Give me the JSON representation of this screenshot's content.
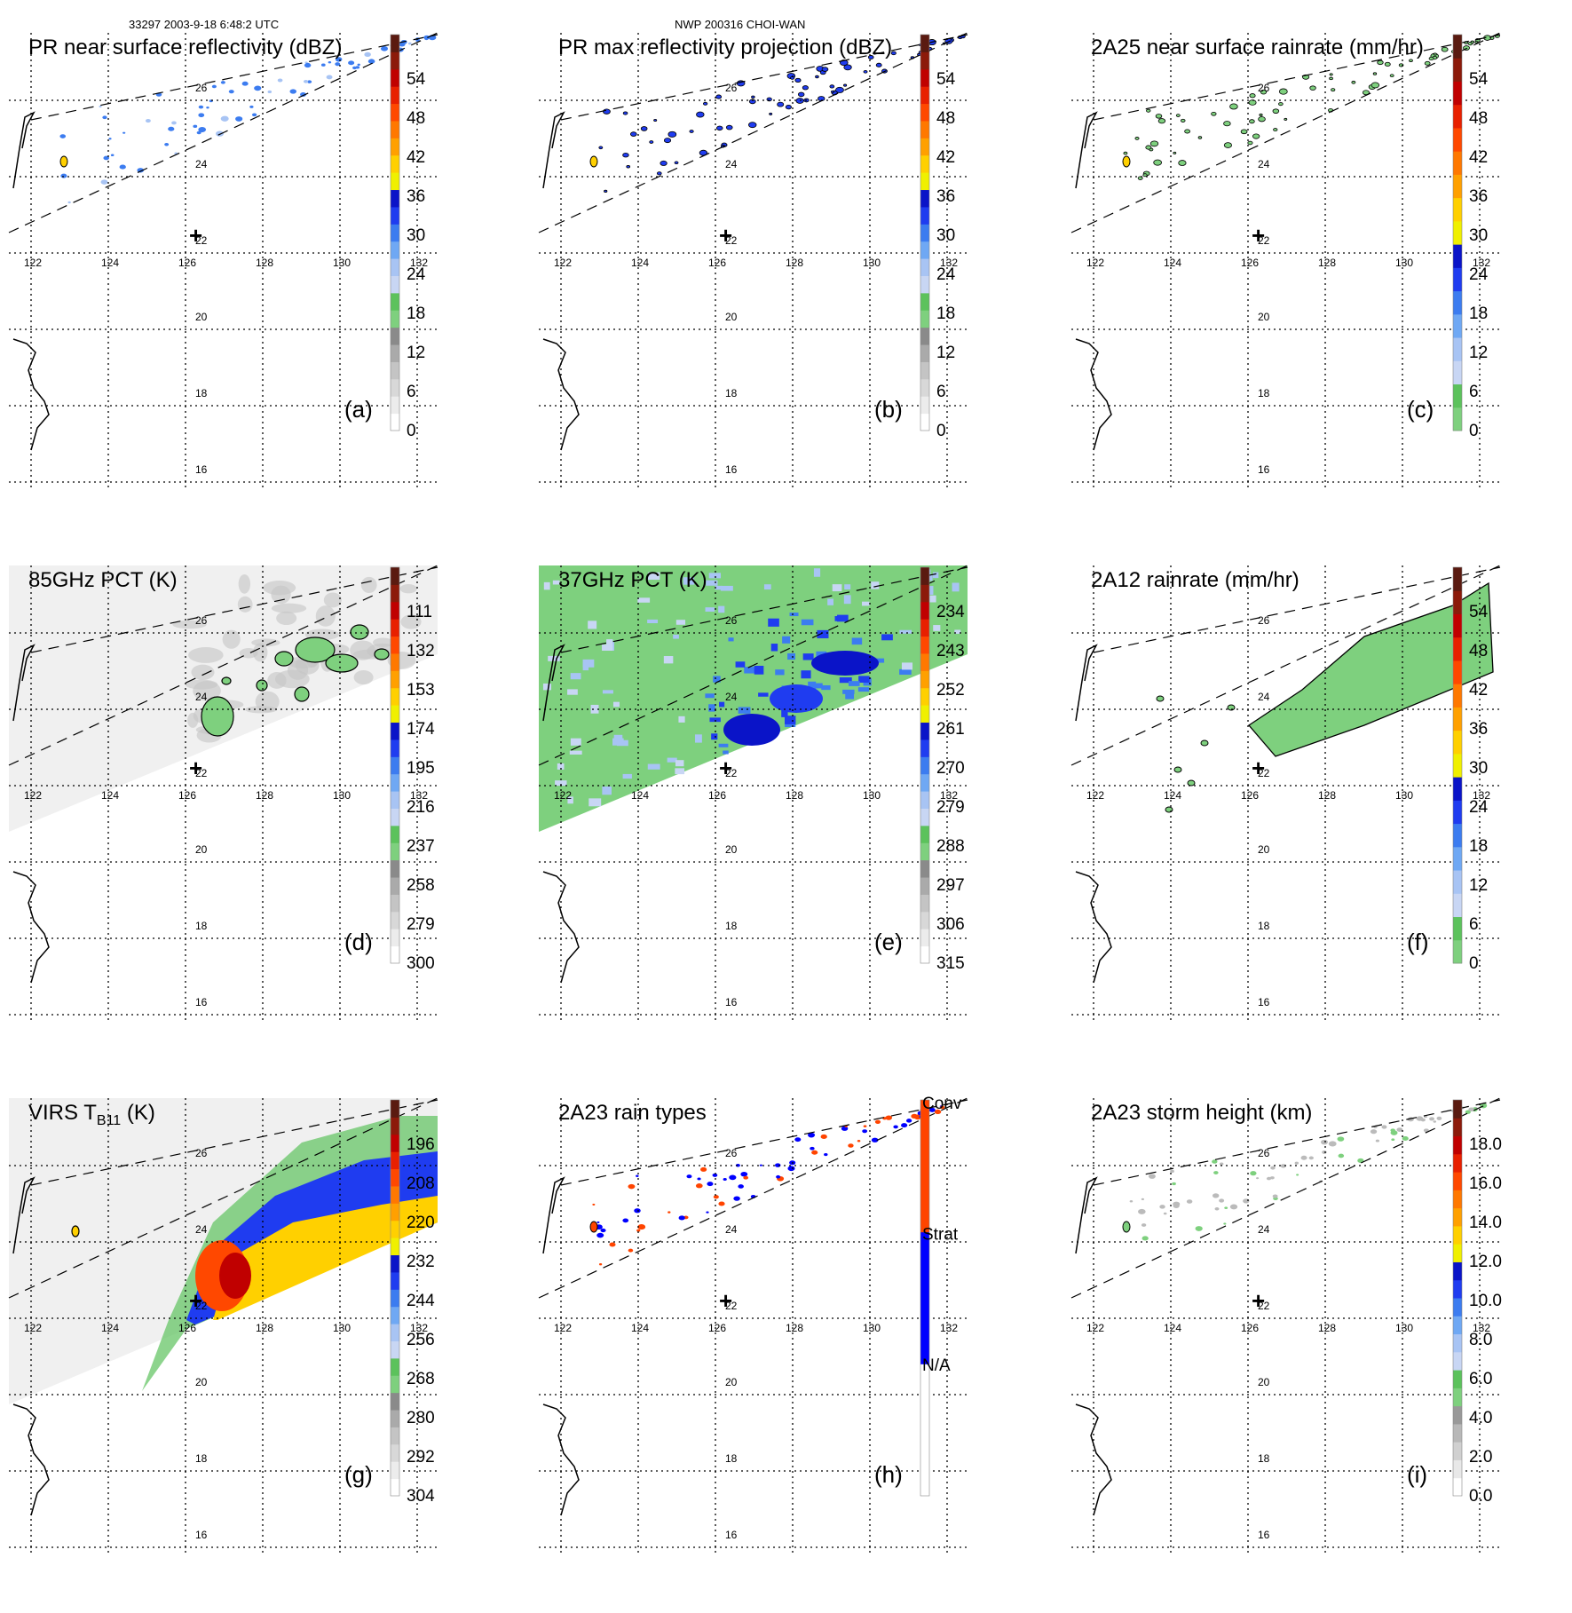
{
  "header": {
    "left": "33297 2003-9-18 6:48:2 UTC",
    "center": "NWP 200316 CHOI-WAN"
  },
  "map": {
    "lon_labels": [
      "122",
      "124",
      "126",
      "128",
      "130",
      "132"
    ],
    "lat_labels": [
      "26",
      "24",
      "22",
      "20",
      "18",
      "16"
    ],
    "storm_center": "+"
  },
  "panels": [
    {
      "id": "a",
      "title": "PR near surface reflectivity (dBZ)",
      "letter": "(a)",
      "ticks": [
        "54",
        "48",
        "42",
        "36",
        "30",
        "24",
        "18",
        "12",
        "6",
        "0"
      ],
      "palette": "dbz",
      "field": "pr_swath"
    },
    {
      "id": "b",
      "title": "PR max reflectivity projection (dBZ)",
      "letter": "(b)",
      "ticks": [
        "54",
        "48",
        "42",
        "36",
        "30",
        "24",
        "18",
        "12",
        "6",
        "0"
      ],
      "palette": "dbz",
      "field": "pr_swath_max"
    },
    {
      "id": "c",
      "title": "2A25 near surface rainrate (mm/hr)",
      "letter": "(c)",
      "ticks": [
        "54",
        "48",
        "42",
        "36",
        "30",
        "24",
        "18",
        "12",
        "6",
        "0"
      ],
      "palette": "rain",
      "field": "pr_swath_rain"
    },
    {
      "id": "d",
      "title": "85GHz PCT (K)",
      "letter": "(d)",
      "ticks": [
        "111",
        "132",
        "153",
        "174",
        "195",
        "216",
        "237",
        "258",
        "279",
        "300"
      ],
      "palette": "dbz",
      "field": "tmi85"
    },
    {
      "id": "e",
      "title": "37GHz PCT (K)",
      "letter": "(e)",
      "ticks": [
        "234",
        "243",
        "252",
        "261",
        "270",
        "279",
        "288",
        "297",
        "306",
        "315"
      ],
      "palette": "dbz",
      "field": "tmi37"
    },
    {
      "id": "f",
      "title": "2A12 rainrate (mm/hr)",
      "letter": "(f)",
      "ticks": [
        "54",
        "48",
        "42",
        "36",
        "30",
        "24",
        "18",
        "12",
        "6",
        "0"
      ],
      "palette": "rain",
      "field": "tmi_rain"
    },
    {
      "id": "g",
      "title": "VIRS T",
      "title_sub": "B11",
      "title_tail": " (K)",
      "letter": "(g)",
      "ticks": [
        "196",
        "208",
        "220",
        "232",
        "244",
        "256",
        "268",
        "280",
        "292",
        "304"
      ],
      "palette": "virs",
      "field": "virs"
    },
    {
      "id": "h",
      "title": "2A23 rain types",
      "letter": "(h)",
      "ticks": [
        "Conv",
        "Strat",
        "N/A"
      ],
      "palette": "types",
      "field": "pr_types"
    },
    {
      "id": "i",
      "title": "2A23 storm height (km)",
      "letter": "(i)",
      "ticks": [
        "18.0",
        "16.0",
        "14.0",
        "12.0",
        "10.0",
        "8.0",
        "6.0",
        "4.0",
        "2.0",
        "0.0"
      ],
      "palette": "height",
      "field": "pr_height"
    }
  ],
  "colors": {
    "dbz": [
      "#ffffff",
      "#ececec",
      "#d8d8d8",
      "#c4c4c4",
      "#aaaaaa",
      "#8a8a8a",
      "#7ed07e",
      "#5cc25c",
      "#c8d6f4",
      "#a8c4f4",
      "#6fa8f4",
      "#3c7cf0",
      "#1f3cf0",
      "#0a14c8",
      "#f0f000",
      "#ffd000",
      "#ffa000",
      "#ff7800",
      "#ff4800",
      "#e82000",
      "#c00000",
      "#8c1a0a",
      "#5a1a10"
    ],
    "rain": [
      "#7ed07e",
      "#5cc25c",
      "#c8d6f4",
      "#a8c4f4",
      "#6fa8f4",
      "#3c7cf0",
      "#1f3cf0",
      "#0a14c8",
      "#f0f000",
      "#ffd000",
      "#ffa000",
      "#ff7800",
      "#ff4800",
      "#e82000",
      "#c00000",
      "#8c1a0a",
      "#5a1a10"
    ],
    "virs": [
      "#ffffff",
      "#ececec",
      "#d8d8d8",
      "#c4c4c4",
      "#aaaaaa",
      "#8a8a8a",
      "#7ed07e",
      "#5cc25c",
      "#c8d6f4",
      "#a8c4f4",
      "#6fa8f4",
      "#3c7cf0",
      "#1f3cf0",
      "#0a14c8",
      "#f0f000",
      "#ffd000",
      "#ffa000",
      "#ff7800",
      "#ff4800",
      "#e82000",
      "#c00000",
      "#8c1a0a",
      "#5a1a10"
    ],
    "height": [
      "#ffffff",
      "#e8e8e8",
      "#d0d0d0",
      "#b8b8b8",
      "#999999",
      "#7ed07e",
      "#5cc25c",
      "#c8d6f4",
      "#a8c4f4",
      "#6fa8f4",
      "#3c7cf0",
      "#1f3cf0",
      "#0a14c8",
      "#f0f000",
      "#ffd000",
      "#ffa000",
      "#ff7800",
      "#ff4800",
      "#e82000",
      "#c00000",
      "#8c1a0a",
      "#5a1a10"
    ],
    "types": [
      "#ffffff",
      "#0000ff",
      "#ff4400"
    ]
  }
}
